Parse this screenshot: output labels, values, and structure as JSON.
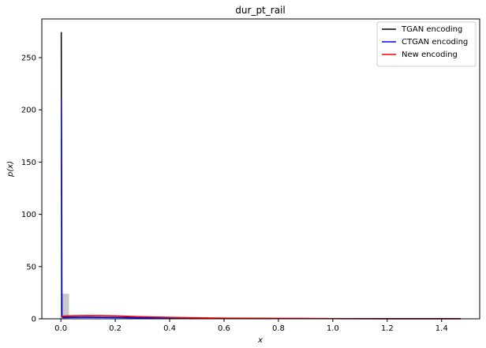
{
  "chart_data": {
    "type": "line",
    "title": "dur_pt_rail",
    "xlabel": "x",
    "ylabel": "p(x)",
    "xlim": [
      -0.07,
      1.54
    ],
    "ylim": [
      0,
      287
    ],
    "xticks": [
      "0.0",
      "0.2",
      "0.4",
      "0.6",
      "0.8",
      "1.0",
      "1.2",
      "1.4"
    ],
    "xtick_values": [
      0.0,
      0.2,
      0.4,
      0.6,
      0.8,
      1.0,
      1.2,
      1.4
    ],
    "yticks": [
      "0",
      "50",
      "100",
      "150",
      "200",
      "250"
    ],
    "ytick_values": [
      0,
      50,
      100,
      150,
      200,
      250
    ],
    "grid": false,
    "legend_position": "top-right",
    "histogram": {
      "color": "#c8c8c8",
      "bins": [
        {
          "x0": 0.0,
          "x1": 0.03,
          "value": 24
        },
        {
          "x0": 0.03,
          "x1": 0.06,
          "value": 0.5
        },
        {
          "x0": 0.06,
          "x1": 0.09,
          "value": 0.2
        }
      ]
    },
    "series": [
      {
        "name": "TGAN encoding",
        "color": "#000000",
        "x": [
          0.0,
          0.0015,
          0.003,
          0.006,
          0.01,
          0.05,
          0.1,
          0.2,
          0.3,
          0.4,
          0.6,
          0.8,
          1.0,
          1.2,
          1.47
        ],
        "y": [
          274,
          274,
          4,
          1.5,
          1.5,
          1.6,
          1.6,
          1.4,
          1.0,
          0.8,
          0.5,
          0.3,
          0.2,
          0.1,
          0.05
        ]
      },
      {
        "name": "CTGAN encoding",
        "color": "#0000ff",
        "x": [
          0.0,
          0.002,
          0.004,
          0.008,
          0.03,
          0.1,
          0.2,
          0.3,
          0.4,
          0.6,
          0.8,
          1.0,
          1.2,
          1.47
        ],
        "y": [
          210,
          210,
          2,
          1.2,
          1.3,
          1.5,
          1.2,
          0.9,
          0.7,
          0.4,
          0.3,
          0.2,
          0.1,
          0.05
        ]
      },
      {
        "name": "New encoding",
        "color": "#ff0000",
        "x": [
          0.0,
          0.01,
          0.05,
          0.1,
          0.15,
          0.2,
          0.3,
          0.4,
          0.5,
          0.6,
          0.8,
          1.0,
          1.2,
          1.47
        ],
        "y": [
          2.0,
          2.6,
          3.0,
          3.2,
          3.1,
          2.8,
          2.0,
          1.4,
          1.0,
          0.7,
          0.4,
          0.2,
          0.1,
          0.05
        ]
      }
    ]
  }
}
